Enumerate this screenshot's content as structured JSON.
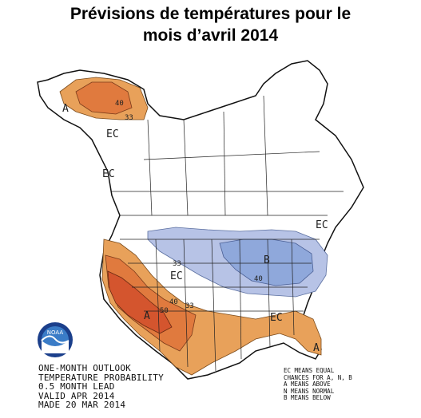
{
  "title": {
    "line1": "Prévisions de températures pour le",
    "line2": "mois d’avril 2014"
  },
  "map_labels": {
    "alaska_above": "A",
    "alaska_40": "40",
    "alaska_33": "33",
    "west_canada_ec": "EC",
    "pacific_ec": "EC",
    "east_canada_ec": "EC",
    "great_lakes_below": "B",
    "below_40": "40",
    "central_ec": "EC",
    "central_33": "33",
    "southwest_above": "A",
    "southwest_50": "50",
    "southwest_40": "40",
    "southwest_33": "33",
    "south_ec": "EC",
    "florida_above": "A"
  },
  "outlook_info": {
    "line1": "ONE-MONTH OUTLOOK",
    "line2": "TEMPERATURE PROBABILITY",
    "line3": "0.5 MONTH LEAD",
    "line4": "VALID APR 2014",
    "line5": "MADE 20 MAR 2014"
  },
  "legend": {
    "line1": "EC MEANS EQUAL",
    "line2": "CHANCES FOR A, N, B",
    "line3": "A MEANS ABOVE",
    "line4": "N MEANS NORMAL",
    "line5": "B MEANS BELOW"
  },
  "logo": {
    "text": "NOAA"
  },
  "colors": {
    "above_33": "#e8a15a",
    "above_40": "#e07a3e",
    "above_50": "#d4552e",
    "below_33": "#b7c3e6",
    "below_40": "#8fa8db",
    "border": "#111111",
    "state_lines": "#222222"
  }
}
